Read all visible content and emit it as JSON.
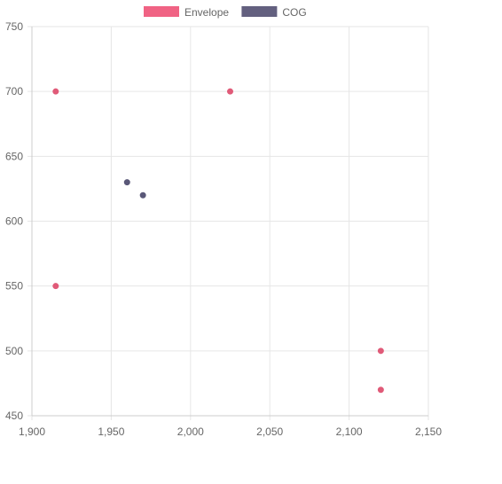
{
  "chart_data": {
    "type": "scatter",
    "title": "",
    "xlabel": "",
    "ylabel": "",
    "xlim": [
      1900,
      2150
    ],
    "ylim": [
      450,
      750
    ],
    "x_ticks": [
      1900,
      1950,
      2000,
      2050,
      2100,
      2150
    ],
    "y_ticks": [
      450,
      500,
      550,
      600,
      650,
      700,
      750
    ],
    "x_tick_labels": [
      "1,900",
      "1,950",
      "2,000",
      "2,050",
      "2,100",
      "2,150"
    ],
    "y_tick_labels": [
      "450",
      "500",
      "550",
      "600",
      "650",
      "700",
      "750"
    ],
    "grid": true,
    "legend_position": "top",
    "series": [
      {
        "name": "Envelope",
        "color": "#f06384",
        "point_color": "#e05a78",
        "points": [
          {
            "x": 1915,
            "y": 700
          },
          {
            "x": 1915,
            "y": 550
          },
          {
            "x": 2025,
            "y": 700
          },
          {
            "x": 2120,
            "y": 500
          },
          {
            "x": 2120,
            "y": 470
          }
        ]
      },
      {
        "name": "COG",
        "color": "#63607f",
        "point_color": "#5a5878",
        "points": [
          {
            "x": 1960,
            "y": 630
          },
          {
            "x": 1970,
            "y": 620
          }
        ]
      }
    ]
  }
}
